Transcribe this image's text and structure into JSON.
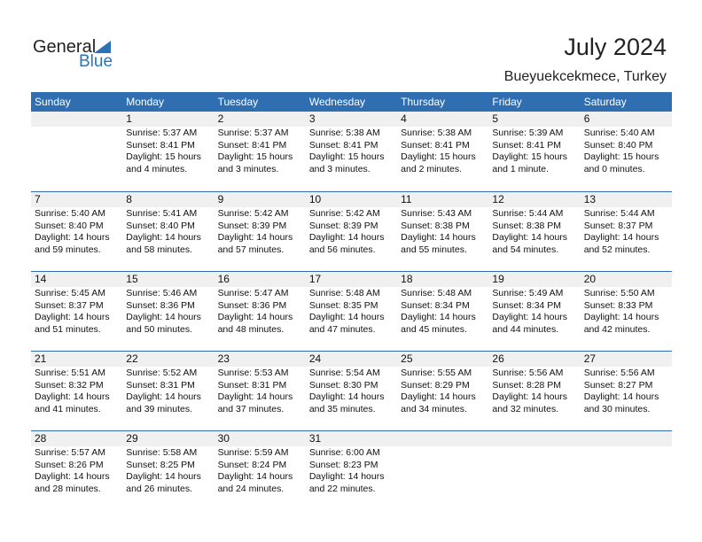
{
  "logo": {
    "general": "General",
    "blue": "Blue"
  },
  "title": "July 2024",
  "location": "Bueyuekcekmece, Turkey",
  "colors": {
    "header": "#2f6fb1",
    "day_band": "#f0f0f0"
  },
  "weekdays": [
    "Sunday",
    "Monday",
    "Tuesday",
    "Wednesday",
    "Thursday",
    "Friday",
    "Saturday"
  ],
  "weeks": [
    [
      null,
      {
        "day": "1",
        "sunrise": "Sunrise: 5:37 AM",
        "sunset": "Sunset: 8:41 PM",
        "daylight1": "Daylight: 15 hours",
        "daylight2": "and 4 minutes."
      },
      {
        "day": "2",
        "sunrise": "Sunrise: 5:37 AM",
        "sunset": "Sunset: 8:41 PM",
        "daylight1": "Daylight: 15 hours",
        "daylight2": "and 3 minutes."
      },
      {
        "day": "3",
        "sunrise": "Sunrise: 5:38 AM",
        "sunset": "Sunset: 8:41 PM",
        "daylight1": "Daylight: 15 hours",
        "daylight2": "and 3 minutes."
      },
      {
        "day": "4",
        "sunrise": "Sunrise: 5:38 AM",
        "sunset": "Sunset: 8:41 PM",
        "daylight1": "Daylight: 15 hours",
        "daylight2": "and 2 minutes."
      },
      {
        "day": "5",
        "sunrise": "Sunrise: 5:39 AM",
        "sunset": "Sunset: 8:41 PM",
        "daylight1": "Daylight: 15 hours",
        "daylight2": "and 1 minute."
      },
      {
        "day": "6",
        "sunrise": "Sunrise: 5:40 AM",
        "sunset": "Sunset: 8:40 PM",
        "daylight1": "Daylight: 15 hours",
        "daylight2": "and 0 minutes."
      }
    ],
    [
      {
        "day": "7",
        "sunrise": "Sunrise: 5:40 AM",
        "sunset": "Sunset: 8:40 PM",
        "daylight1": "Daylight: 14 hours",
        "daylight2": "and 59 minutes."
      },
      {
        "day": "8",
        "sunrise": "Sunrise: 5:41 AM",
        "sunset": "Sunset: 8:40 PM",
        "daylight1": "Daylight: 14 hours",
        "daylight2": "and 58 minutes."
      },
      {
        "day": "9",
        "sunrise": "Sunrise: 5:42 AM",
        "sunset": "Sunset: 8:39 PM",
        "daylight1": "Daylight: 14 hours",
        "daylight2": "and 57 minutes."
      },
      {
        "day": "10",
        "sunrise": "Sunrise: 5:42 AM",
        "sunset": "Sunset: 8:39 PM",
        "daylight1": "Daylight: 14 hours",
        "daylight2": "and 56 minutes."
      },
      {
        "day": "11",
        "sunrise": "Sunrise: 5:43 AM",
        "sunset": "Sunset: 8:38 PM",
        "daylight1": "Daylight: 14 hours",
        "daylight2": "and 55 minutes."
      },
      {
        "day": "12",
        "sunrise": "Sunrise: 5:44 AM",
        "sunset": "Sunset: 8:38 PM",
        "daylight1": "Daylight: 14 hours",
        "daylight2": "and 54 minutes."
      },
      {
        "day": "13",
        "sunrise": "Sunrise: 5:44 AM",
        "sunset": "Sunset: 8:37 PM",
        "daylight1": "Daylight: 14 hours",
        "daylight2": "and 52 minutes."
      }
    ],
    [
      {
        "day": "14",
        "sunrise": "Sunrise: 5:45 AM",
        "sunset": "Sunset: 8:37 PM",
        "daylight1": "Daylight: 14 hours",
        "daylight2": "and 51 minutes."
      },
      {
        "day": "15",
        "sunrise": "Sunrise: 5:46 AM",
        "sunset": "Sunset: 8:36 PM",
        "daylight1": "Daylight: 14 hours",
        "daylight2": "and 50 minutes."
      },
      {
        "day": "16",
        "sunrise": "Sunrise: 5:47 AM",
        "sunset": "Sunset: 8:36 PM",
        "daylight1": "Daylight: 14 hours",
        "daylight2": "and 48 minutes."
      },
      {
        "day": "17",
        "sunrise": "Sunrise: 5:48 AM",
        "sunset": "Sunset: 8:35 PM",
        "daylight1": "Daylight: 14 hours",
        "daylight2": "and 47 minutes."
      },
      {
        "day": "18",
        "sunrise": "Sunrise: 5:48 AM",
        "sunset": "Sunset: 8:34 PM",
        "daylight1": "Daylight: 14 hours",
        "daylight2": "and 45 minutes."
      },
      {
        "day": "19",
        "sunrise": "Sunrise: 5:49 AM",
        "sunset": "Sunset: 8:34 PM",
        "daylight1": "Daylight: 14 hours",
        "daylight2": "and 44 minutes."
      },
      {
        "day": "20",
        "sunrise": "Sunrise: 5:50 AM",
        "sunset": "Sunset: 8:33 PM",
        "daylight1": "Daylight: 14 hours",
        "daylight2": "and 42 minutes."
      }
    ],
    [
      {
        "day": "21",
        "sunrise": "Sunrise: 5:51 AM",
        "sunset": "Sunset: 8:32 PM",
        "daylight1": "Daylight: 14 hours",
        "daylight2": "and 41 minutes."
      },
      {
        "day": "22",
        "sunrise": "Sunrise: 5:52 AM",
        "sunset": "Sunset: 8:31 PM",
        "daylight1": "Daylight: 14 hours",
        "daylight2": "and 39 minutes."
      },
      {
        "day": "23",
        "sunrise": "Sunrise: 5:53 AM",
        "sunset": "Sunset: 8:31 PM",
        "daylight1": "Daylight: 14 hours",
        "daylight2": "and 37 minutes."
      },
      {
        "day": "24",
        "sunrise": "Sunrise: 5:54 AM",
        "sunset": "Sunset: 8:30 PM",
        "daylight1": "Daylight: 14 hours",
        "daylight2": "and 35 minutes."
      },
      {
        "day": "25",
        "sunrise": "Sunrise: 5:55 AM",
        "sunset": "Sunset: 8:29 PM",
        "daylight1": "Daylight: 14 hours",
        "daylight2": "and 34 minutes."
      },
      {
        "day": "26",
        "sunrise": "Sunrise: 5:56 AM",
        "sunset": "Sunset: 8:28 PM",
        "daylight1": "Daylight: 14 hours",
        "daylight2": "and 32 minutes."
      },
      {
        "day": "27",
        "sunrise": "Sunrise: 5:56 AM",
        "sunset": "Sunset: 8:27 PM",
        "daylight1": "Daylight: 14 hours",
        "daylight2": "and 30 minutes."
      }
    ],
    [
      {
        "day": "28",
        "sunrise": "Sunrise: 5:57 AM",
        "sunset": "Sunset: 8:26 PM",
        "daylight1": "Daylight: 14 hours",
        "daylight2": "and 28 minutes."
      },
      {
        "day": "29",
        "sunrise": "Sunrise: 5:58 AM",
        "sunset": "Sunset: 8:25 PM",
        "daylight1": "Daylight: 14 hours",
        "daylight2": "and 26 minutes."
      },
      {
        "day": "30",
        "sunrise": "Sunrise: 5:59 AM",
        "sunset": "Sunset: 8:24 PM",
        "daylight1": "Daylight: 14 hours",
        "daylight2": "and 24 minutes."
      },
      {
        "day": "31",
        "sunrise": "Sunrise: 6:00 AM",
        "sunset": "Sunset: 8:23 PM",
        "daylight1": "Daylight: 14 hours",
        "daylight2": "and 22 minutes."
      },
      null,
      null,
      null
    ]
  ]
}
